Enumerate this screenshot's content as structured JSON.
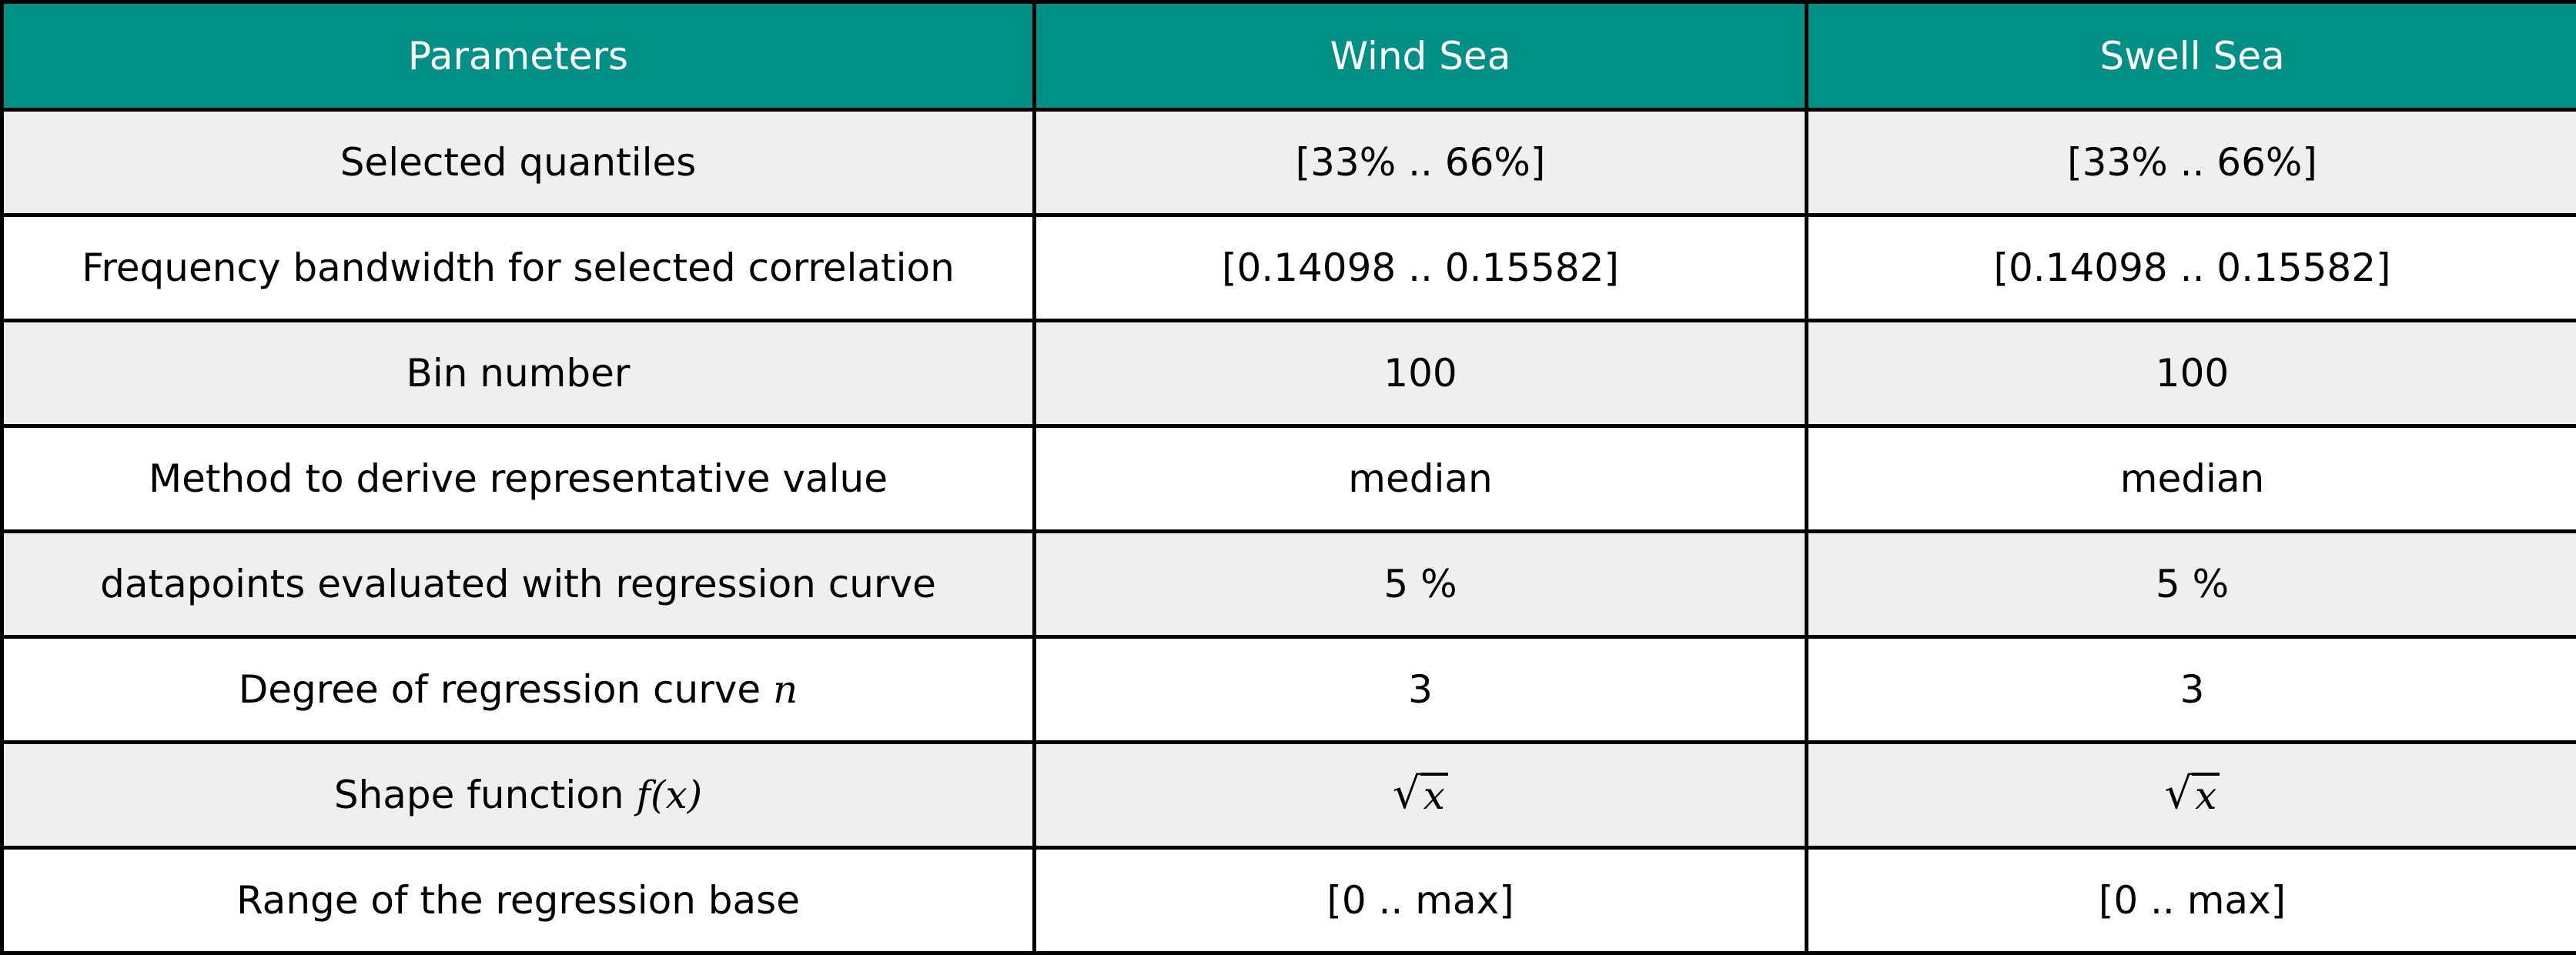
{
  "table": {
    "headers": [
      "Parameters",
      "Wind Sea",
      "Swell Sea"
    ],
    "rows": [
      {
        "label": "Selected quantiles",
        "wind": "[33% .. 66%]",
        "swell": "[33% .. 66%]"
      },
      {
        "label": "Frequency bandwidth for selected correlation",
        "wind": "[0.14098 .. 0.15582]",
        "swell": "[0.14098 .. 0.15582]"
      },
      {
        "label": "Bin number",
        "wind": "100",
        "swell": "100"
      },
      {
        "label": "Method to derive representative value",
        "wind": "median",
        "swell": "median"
      },
      {
        "label": "datapoints evaluated with regression curve",
        "wind": "5 %",
        "swell": "5 %"
      },
      {
        "label_text": "Degree of regression curve ",
        "label_math": "n",
        "wind": "3",
        "swell": "3"
      },
      {
        "label_text": "Shape function ",
        "label_math": "f(x)",
        "wind_sqrt": "√",
        "wind_arg": "x",
        "swell_sqrt": "√",
        "swell_arg": "x"
      },
      {
        "label": "Range of the regression base",
        "wind": "[0 .. max]",
        "swell": "[0 .. max]"
      }
    ]
  },
  "colors": {
    "header_bg": "#009086",
    "header_text": "#ffffff",
    "row_shade": "#efefef",
    "row_plain": "#ffffff",
    "border": "#000000"
  }
}
